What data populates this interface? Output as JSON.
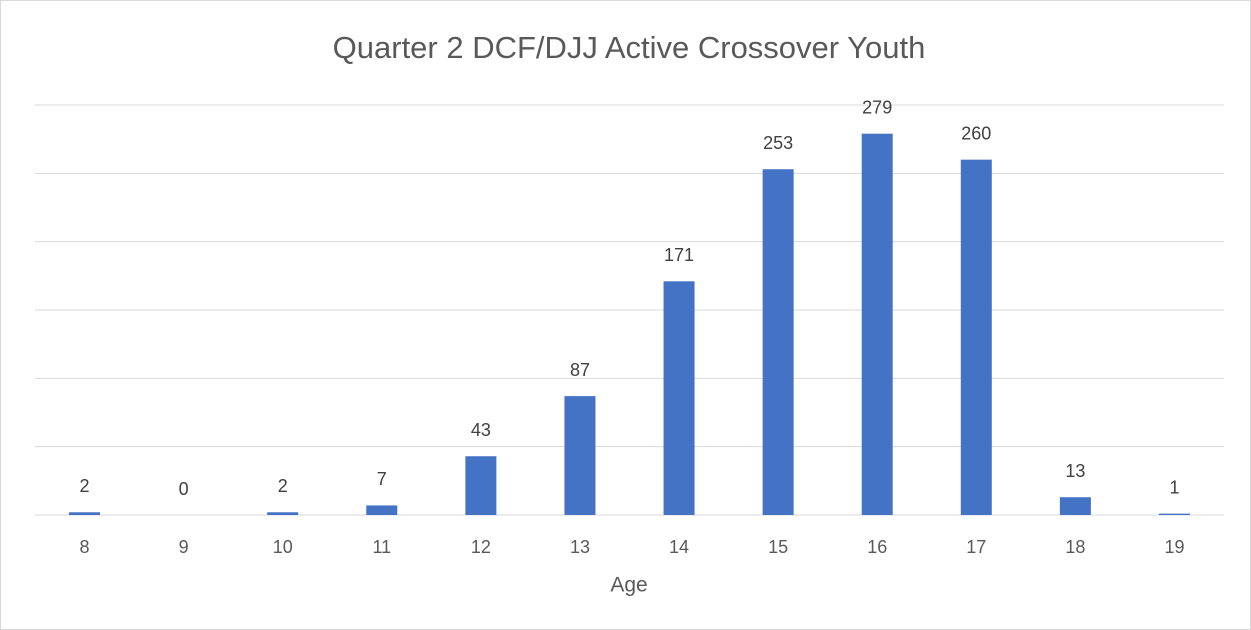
{
  "chart_data": {
    "type": "bar",
    "title": "Quarter 2 DCF/DJJ Active Crossover Youth",
    "x_label": "Age",
    "categories": [
      "8",
      "9",
      "10",
      "11",
      "12",
      "13",
      "14",
      "15",
      "16",
      "17",
      "18",
      "19"
    ],
    "values": [
      2,
      0,
      2,
      7,
      43,
      87,
      171,
      253,
      279,
      260,
      13,
      1
    ],
    "color": "#4472c4",
    "ylim": [
      0,
      300
    ],
    "yticks": [
      0,
      50,
      100,
      150,
      200,
      250,
      300
    ],
    "grid": true
  }
}
